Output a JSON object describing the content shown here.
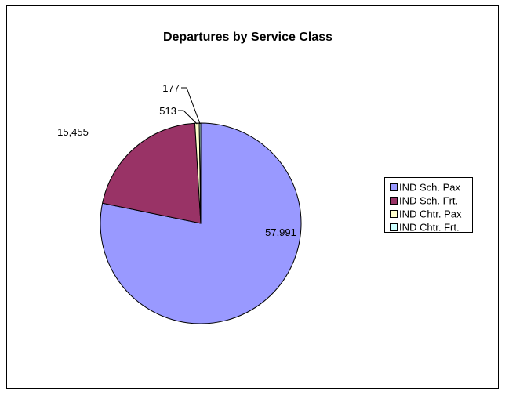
{
  "chart_data": {
    "type": "pie",
    "title": "Departures by Service Class",
    "categories": [
      "IND Sch. Pax",
      "IND Sch. Frt.",
      "IND Chtr. Pax",
      "IND Chtr. Frt."
    ],
    "values": [
      57991,
      15455,
      513,
      177
    ],
    "data_labels": [
      "57,991",
      "15,455",
      "513",
      "177"
    ],
    "colors": [
      "#9999ff",
      "#993366",
      "#ffffcc",
      "#ccffff"
    ],
    "legend_position": "right",
    "start_angle": "12 o'clock, clockwise"
  }
}
